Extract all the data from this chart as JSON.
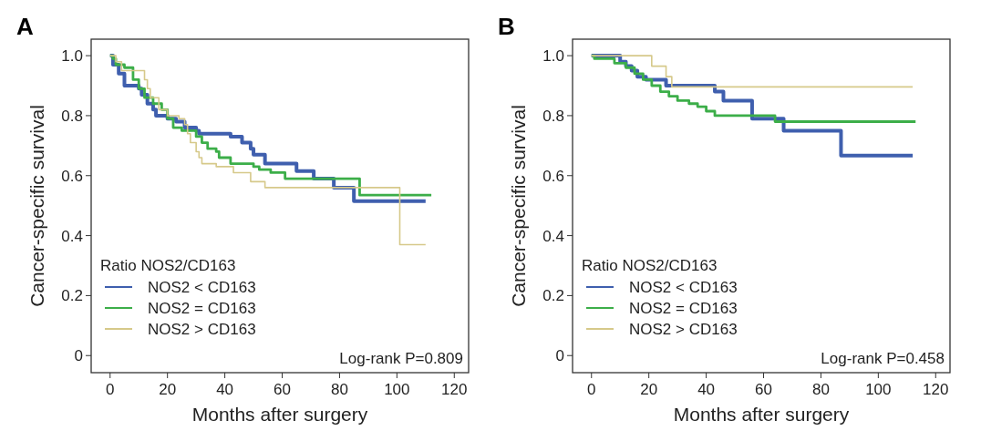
{
  "chart_data": [
    {
      "type": "step",
      "title": "A",
      "xlabel": "Months after surgery",
      "ylabel": "Cancer-specific survival",
      "legend_title": "Ratio NOS2/CD163",
      "legend": "bottom left",
      "grid": false,
      "marker": "none",
      "line_style": "solid",
      "annotations": [
        "Log-rank P=0.809"
      ],
      "xlim": [
        -6.6,
        125
      ],
      "ylim": [
        -0.057,
        1.055
      ],
      "xticks": [
        0,
        20,
        40,
        60,
        80,
        100,
        120
      ],
      "yticks": [
        0,
        0.2,
        0.4,
        0.6,
        0.8,
        {
          "value": 1,
          "label": "1.0"
        }
      ],
      "series": [
        {
          "name": "NOS2 < CD163",
          "color": "#3f5fae",
          "x": [
            0,
            1,
            3,
            5,
            10,
            11,
            13,
            15,
            16,
            20,
            23,
            26,
            30,
            31,
            42,
            46,
            49,
            50,
            54,
            65,
            71,
            78,
            85,
            110
          ],
          "values": [
            1,
            0.97,
            0.94,
            0.9,
            0.89,
            0.87,
            0.84,
            0.82,
            0.8,
            0.79,
            0.78,
            0.76,
            0.75,
            0.74,
            0.73,
            0.71,
            0.69,
            0.67,
            0.64,
            0.615,
            0.59,
            0.56,
            0.515,
            0.515
          ]
        },
        {
          "name": "NOS2 = CD163",
          "color": "#3cae49",
          "x": [
            0,
            1,
            2,
            5,
            8,
            10,
            12,
            15,
            18,
            20,
            22,
            25,
            30,
            32,
            34,
            37,
            38,
            42,
            50,
            52,
            56,
            61,
            87,
            112
          ],
          "values": [
            1,
            0.99,
            0.97,
            0.96,
            0.92,
            0.89,
            0.86,
            0.84,
            0.82,
            0.79,
            0.76,
            0.75,
            0.73,
            0.71,
            0.69,
            0.68,
            0.66,
            0.64,
            0.63,
            0.62,
            0.61,
            0.59,
            0.535,
            0.535
          ]
        },
        {
          "name": "NOS2 > CD163",
          "color": "#d6c98a",
          "x": [
            0,
            2,
            4,
            12,
            13,
            14,
            17,
            20,
            24,
            26,
            27,
            28,
            30,
            31,
            32,
            37,
            43,
            49,
            54,
            101,
            110
          ],
          "values": [
            1,
            0.98,
            0.95,
            0.92,
            0.89,
            0.86,
            0.82,
            0.8,
            0.79,
            0.77,
            0.74,
            0.71,
            0.68,
            0.66,
            0.64,
            0.63,
            0.61,
            0.58,
            0.56,
            0.37,
            0.37
          ]
        }
      ]
    },
    {
      "type": "step",
      "title": "B",
      "xlabel": "Months after surgery",
      "ylabel": "Cancer-specific survival",
      "legend_title": "Ratio NOS2/CD163",
      "legend": "bottom left",
      "grid": false,
      "marker": "none",
      "line_style": "solid",
      "annotations": [
        "Log-rank P=0.458"
      ],
      "xlim": [
        -6.6,
        125
      ],
      "ylim": [
        -0.057,
        1.055
      ],
      "xticks": [
        0,
        20,
        40,
        60,
        80,
        100,
        120
      ],
      "yticks": [
        0,
        0.2,
        0.4,
        0.6,
        0.8,
        {
          "value": 1,
          "label": "1.0"
        }
      ],
      "series": [
        {
          "name": "NOS2 < CD163",
          "color": "#3f5fae",
          "x": [
            0,
            10,
            12,
            14,
            16,
            19,
            26,
            43,
            46,
            56,
            67,
            87,
            112
          ],
          "values": [
            1,
            0.98,
            0.965,
            0.95,
            0.93,
            0.92,
            0.9,
            0.88,
            0.85,
            0.79,
            0.75,
            0.667,
            0.667
          ]
        },
        {
          "name": "NOS2 = CD163",
          "color": "#3cae49",
          "x": [
            0,
            1,
            8,
            12,
            15,
            18,
            21,
            24,
            27,
            30,
            34,
            37,
            40,
            43,
            64,
            113
          ],
          "values": [
            1,
            0.99,
            0.975,
            0.96,
            0.94,
            0.92,
            0.9,
            0.88,
            0.865,
            0.85,
            0.84,
            0.83,
            0.815,
            0.8,
            0.78,
            0.78
          ]
        },
        {
          "name": "NOS2 > CD163",
          "color": "#d6c98a",
          "x": [
            0,
            21,
            26,
            28,
            112
          ],
          "values": [
            1,
            0.965,
            0.93,
            0.896,
            0.896
          ]
        }
      ]
    }
  ]
}
